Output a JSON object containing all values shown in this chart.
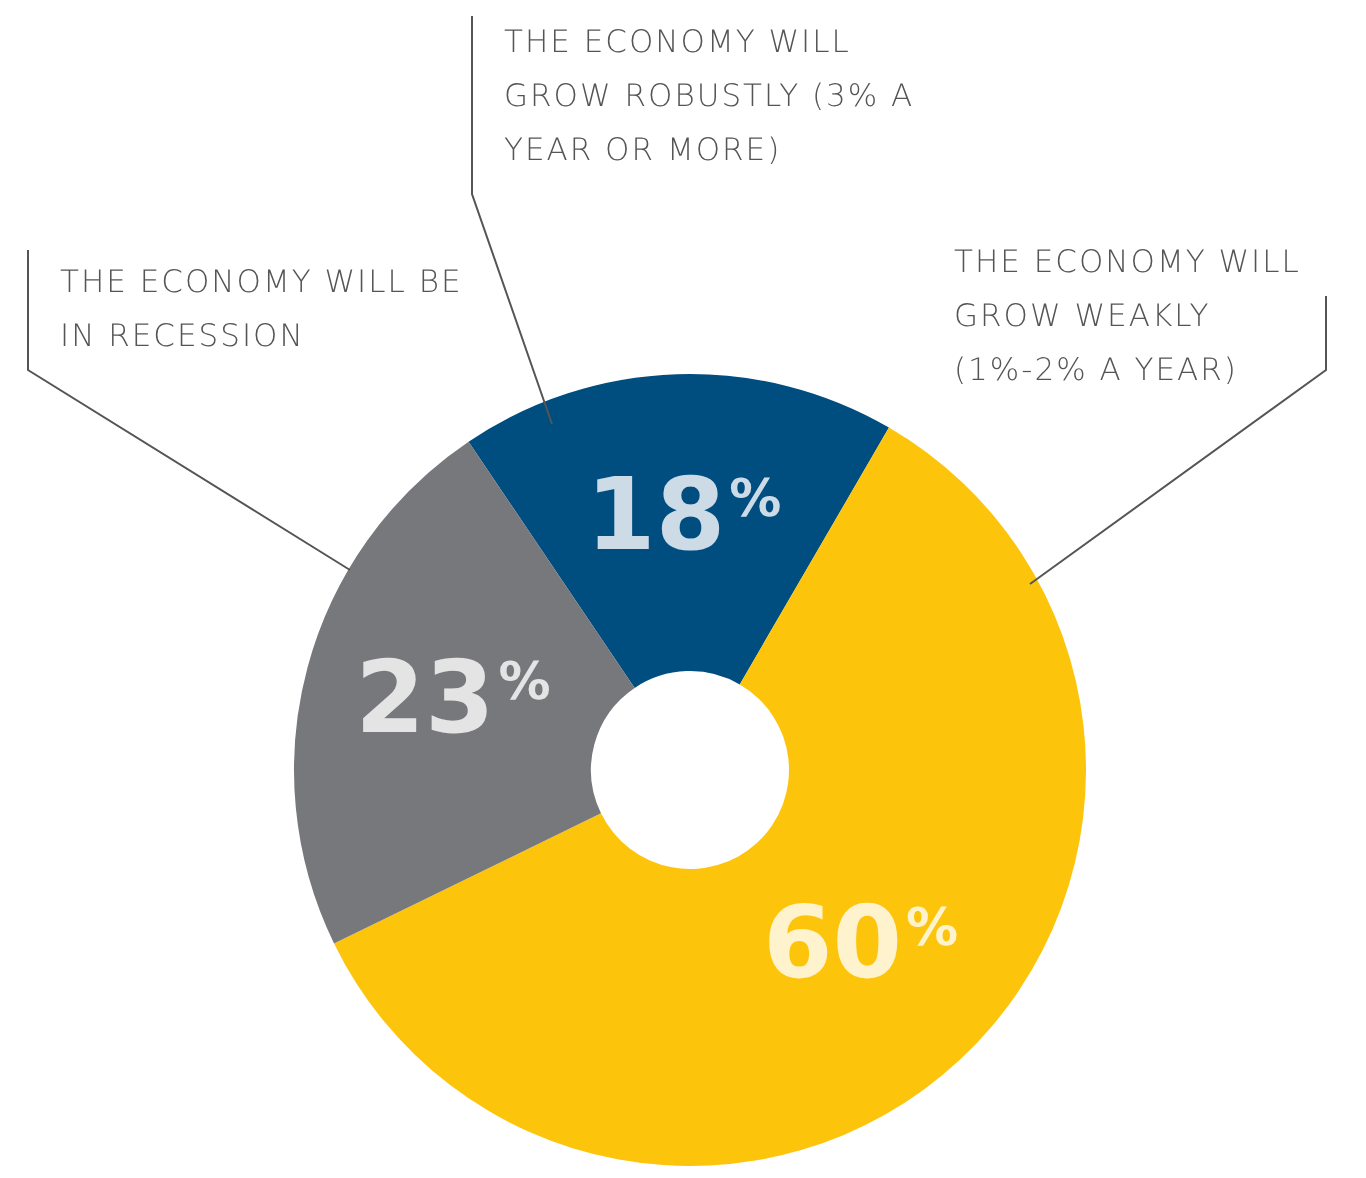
{
  "chart_data": {
    "type": "donut",
    "categories": [
      "THE ECONOMY WILL GROW ROBUSTLY (3% A YEAR OR MORE)",
      "THE ECONOMY WILL GROW WEAKLY (1%-2% A YEAR)",
      "THE ECONOMY WILL BE IN RECESSION"
    ],
    "values": [
      18,
      60,
      23
    ],
    "colors": [
      "#004d80",
      "#fdc40c",
      "#77787b"
    ],
    "value_labels": [
      "18%",
      "60%",
      "23%"
    ],
    "legend": false
  }
}
